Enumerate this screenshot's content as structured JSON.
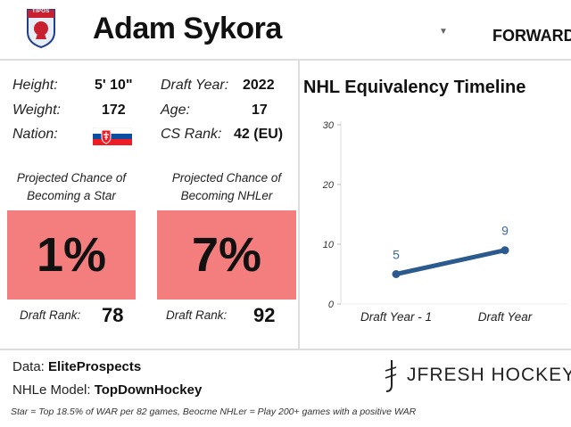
{
  "header": {
    "player_name": "Adam Sykora",
    "position": "FORWARD",
    "logo_text": "TIPOS"
  },
  "info": {
    "height_label": "Height:",
    "height_value": "5' 10\"",
    "weight_label": "Weight:",
    "weight_value": "172",
    "nation_label": "Nation:",
    "nation_flag": "slovakia-flag",
    "draft_year_label": "Draft Year:",
    "draft_year_value": "2022",
    "age_label": "Age:",
    "age_value": "17",
    "cs_rank_label": "CS Rank:",
    "cs_rank_value": "42 (EU)"
  },
  "projections": [
    {
      "title_line1": "Projected Chance of",
      "title_line2": "Becoming a Star",
      "value": "1%",
      "draft_rank_label": "Draft Rank:",
      "draft_rank_value": "78",
      "color": "#f47e7e"
    },
    {
      "title_line1": "Projected Chance of",
      "title_line2": "Becoming NHLer",
      "value": "7%",
      "draft_rank_label": "Draft Rank:",
      "draft_rank_value": "92",
      "color": "#f47e7e"
    }
  ],
  "chart_data": {
    "type": "line",
    "title": "NHL Equivalency Timeline",
    "categories": [
      "Draft Year - 1",
      "Draft Year"
    ],
    "series": [
      {
        "values": [
          5,
          9
        ]
      }
    ],
    "y_ticks": [
      0,
      10,
      20,
      30
    ],
    "ylim": [
      0,
      30
    ],
    "line_color": "#2b5a8e",
    "label_color": "#3a6aa0",
    "grid": false
  },
  "footer": {
    "data_label": "Data:",
    "data_value": "EliteProspects",
    "model_label": "NHLe Model:",
    "model_value": "TopDownHockey",
    "footnote": "Star = Top 18.5% of WAR per 82 games, Beocme NHLer = Play 200+ games with a positive WAR",
    "brand": "JFRESH HOCKEY"
  }
}
